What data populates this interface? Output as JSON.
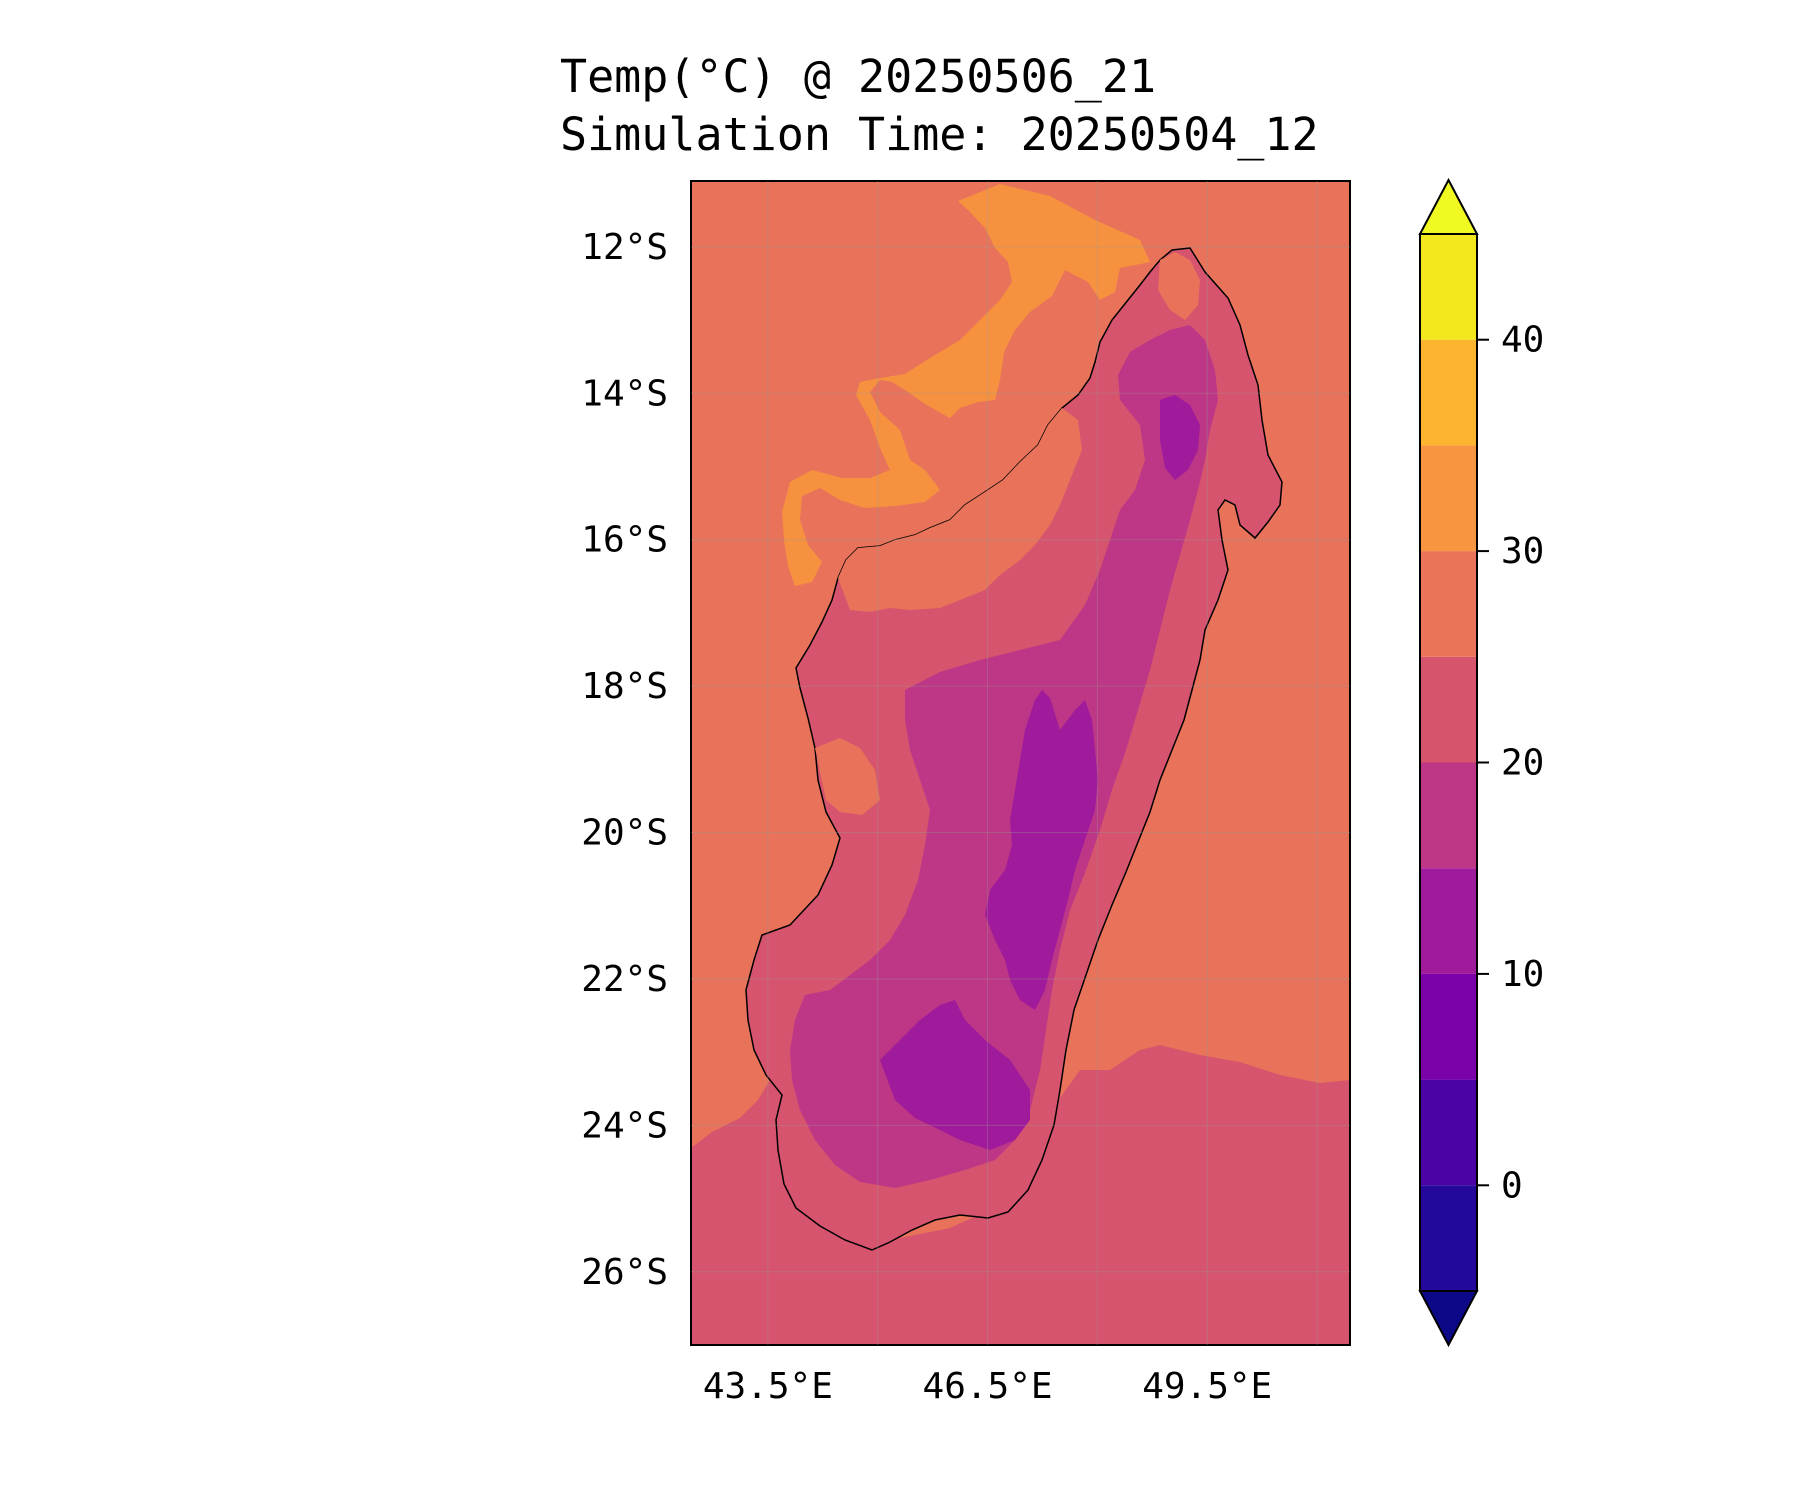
{
  "title": {
    "line1": "Temp(°C) @ 20250506_21",
    "line2": "Simulation Time: 20250504_12"
  },
  "map": {
    "region": "Madagascar",
    "lat_range": [
      -27.0,
      -11.1
    ],
    "lon_range": [
      42.45,
      51.45
    ],
    "lat_ticks": [
      "12°S",
      "14°S",
      "16°S",
      "18°S",
      "20°S",
      "22°S",
      "24°S",
      "26°S"
    ],
    "lon_ticks": [
      "43.5°E",
      "46.5°E",
      "49.5°E"
    ]
  },
  "colorbar": {
    "labels": [
      "0",
      "10",
      "20",
      "30",
      "40"
    ],
    "levels": [
      -5,
      0,
      5,
      10,
      15,
      20,
      25,
      30,
      35,
      40,
      45
    ],
    "colors": [
      "#24079b",
      "#4b03a5",
      "#7b02a8",
      "#a01a9c",
      "#bd3786",
      "#d6556d",
      "#ea7457",
      "#f89540",
      "#fdb42f",
      "#f3e71e"
    ],
    "under_color": "#0d0887",
    "over_color": "#f0f921",
    "extend": "both"
  }
}
